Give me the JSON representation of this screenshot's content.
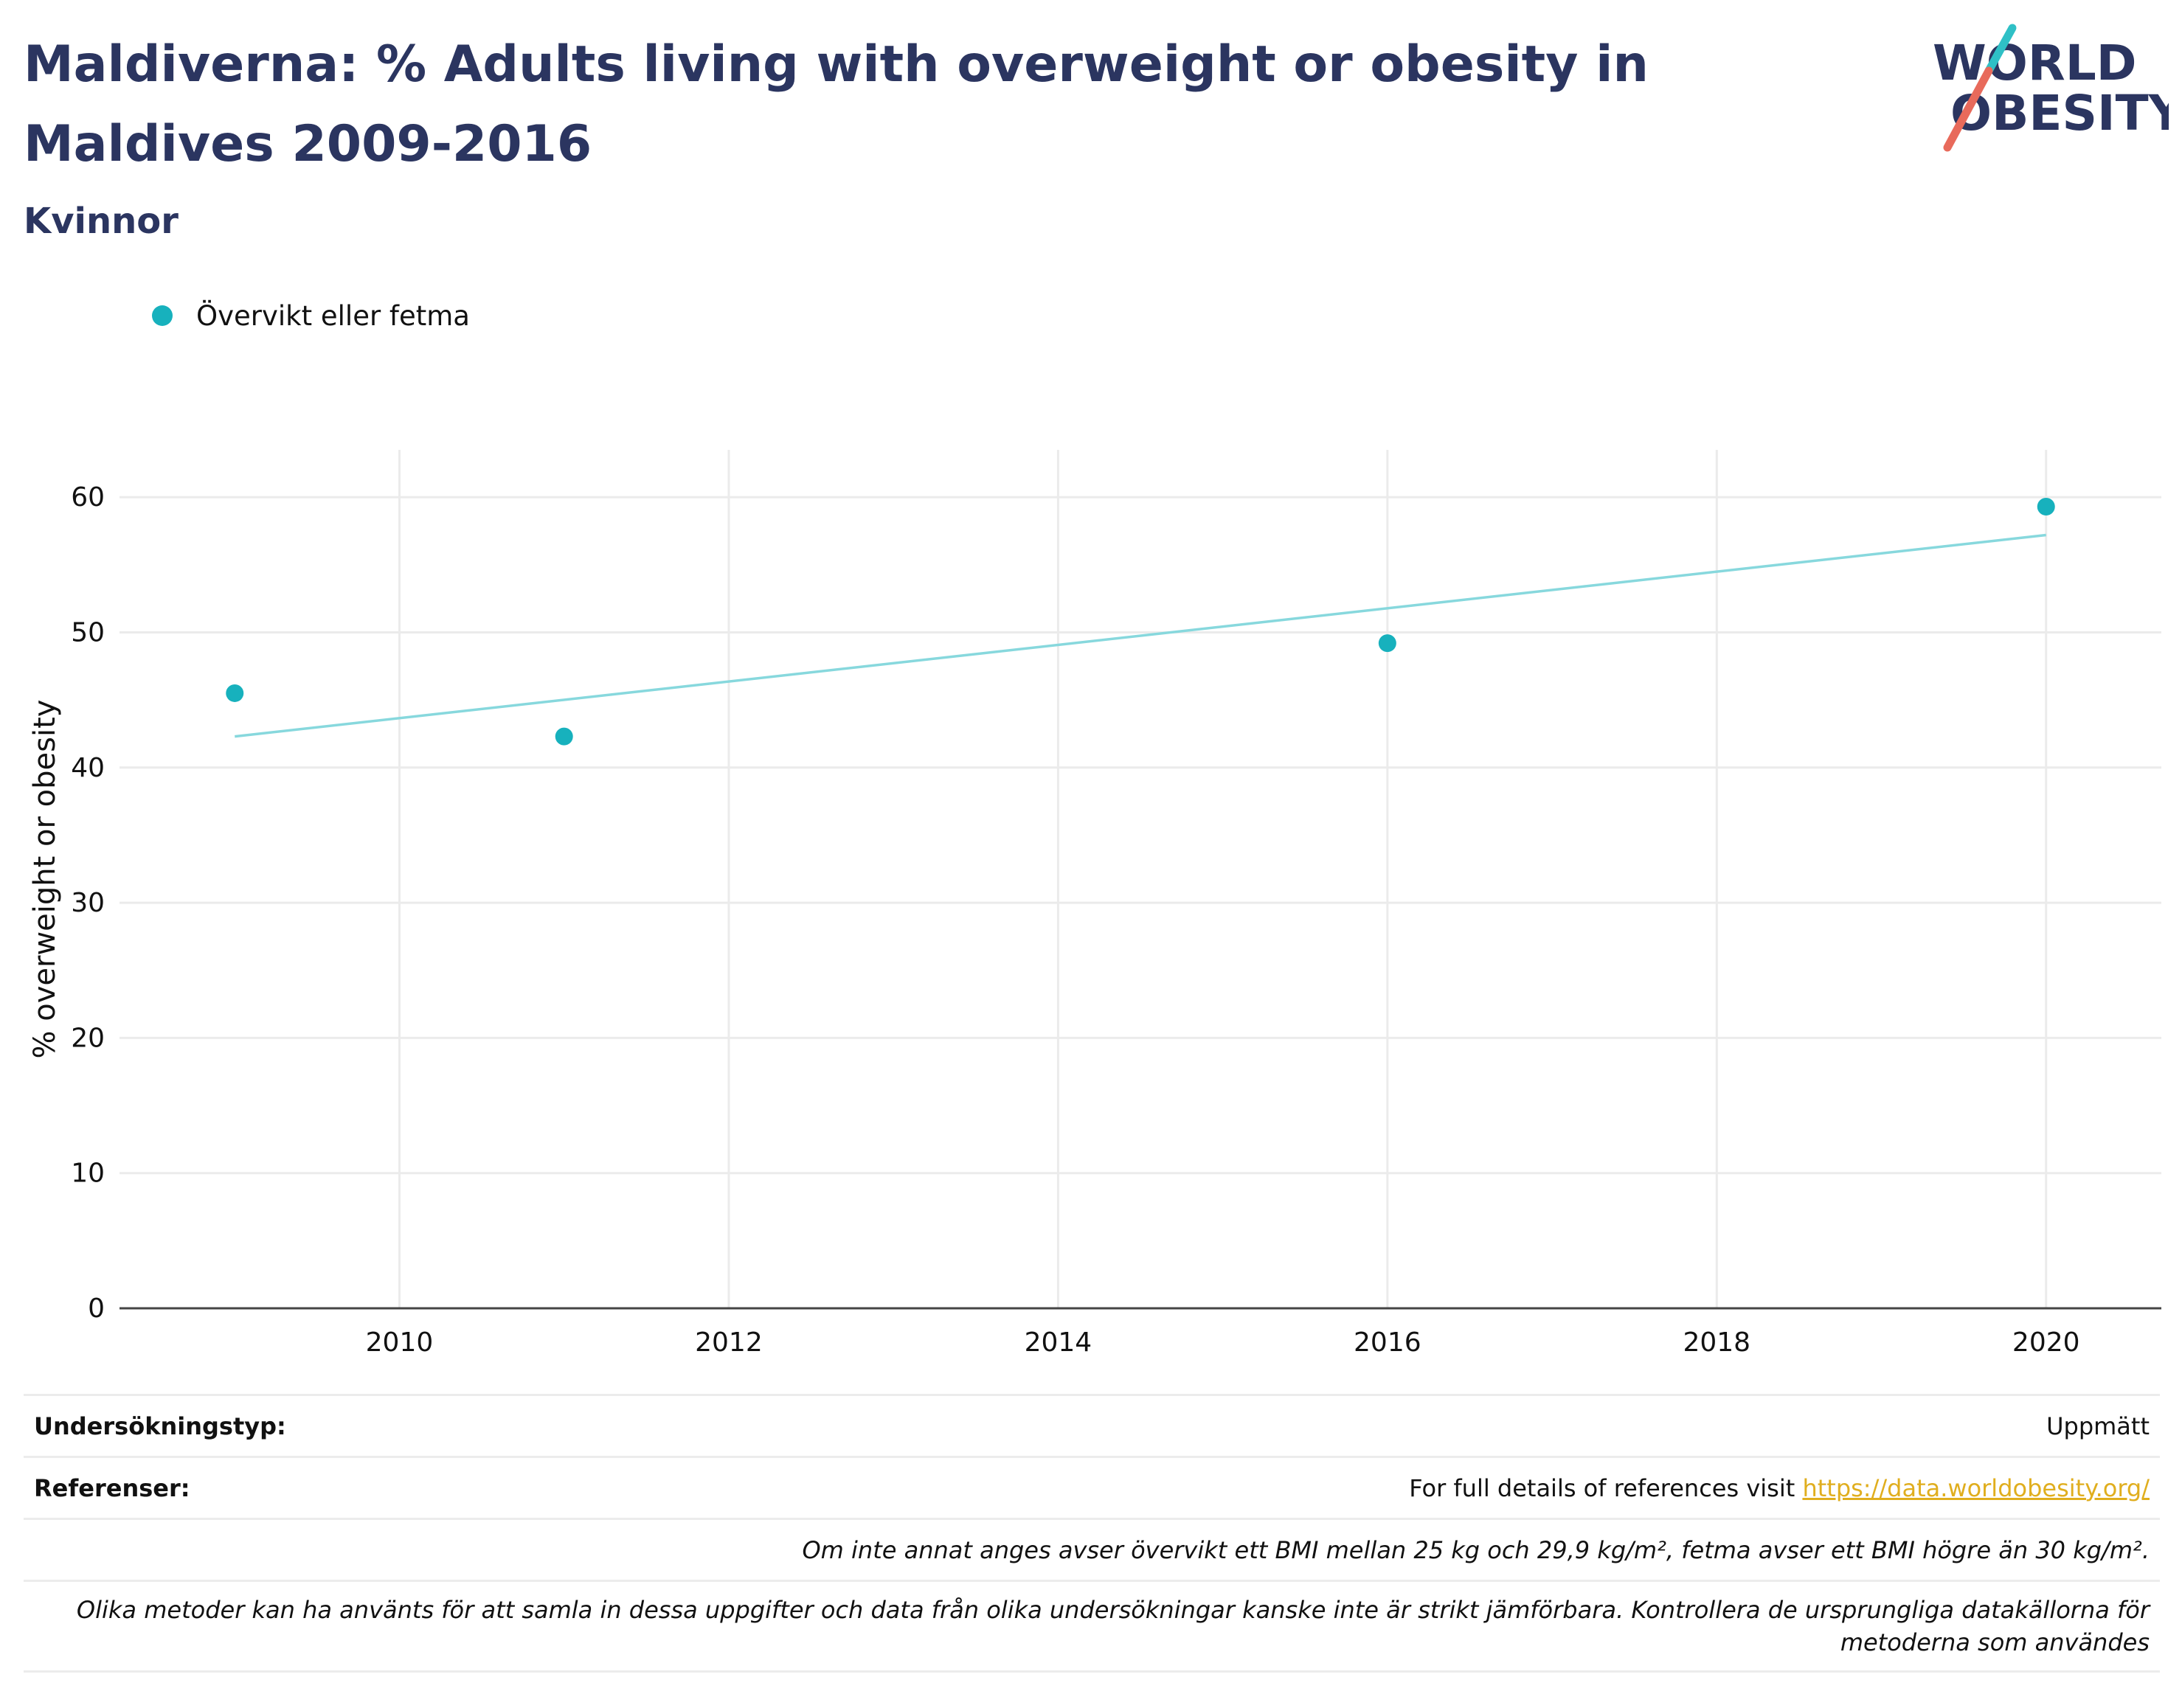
{
  "header": {
    "title": "Maldiverna: % Adults living with overweight or obesity in Maldives 2009-2016",
    "subtitle": "Kvinnor",
    "logo_line1": "WORLD",
    "logo_line2": "OBESITY"
  },
  "colors": {
    "title": "#2b3560",
    "series": "#17b1bd",
    "trend": "#87d8dd",
    "grid": "#ebebeb",
    "logo_teal": "#2fc0c6",
    "logo_coral": "#e86a5b",
    "link": "#e0ae1e"
  },
  "chart_data": {
    "type": "scatter",
    "title": "Maldiverna: % Adults living with overweight or obesity in Maldives 2009-2016",
    "subtitle": "Kvinnor",
    "ylabel": "% overweight or obesity",
    "xlabel": "",
    "xlim": [
      2008.3,
      2020.7
    ],
    "ylim": [
      0,
      63.5
    ],
    "xticks": [
      2010,
      2012,
      2014,
      2016,
      2018,
      2020
    ],
    "yticks": [
      0,
      10,
      20,
      30,
      40,
      50,
      60
    ],
    "grid": true,
    "legend_position": "top-left",
    "series": [
      {
        "name": "Övervikt eller fetma",
        "x": [
          2009,
          2011,
          2016,
          2020
        ],
        "y": [
          45.5,
          42.3,
          49.2,
          59.3
        ]
      }
    ],
    "trendline": {
      "x": [
        2009,
        2020
      ],
      "y": [
        42.3,
        57.2
      ]
    }
  },
  "info": {
    "survey_type_label": "Undersökningstyp:",
    "survey_type_value": "Uppmätt",
    "references_label": "Referenser:",
    "references_text": "For full details of references visit ",
    "references_link": "https://data.worldobesity.org/",
    "note1": "Om inte annat anges avser övervikt ett BMI mellan 25 kg och 29,9 kg/m², fetma avser ett BMI högre än 30 kg/m².",
    "note2": "Olika metoder kan ha använts för att samla in dessa uppgifter och data från olika undersökningar kanske inte är strikt jämförbara. Kontrollera de ursprungliga datakällorna för metoderna som användes"
  }
}
